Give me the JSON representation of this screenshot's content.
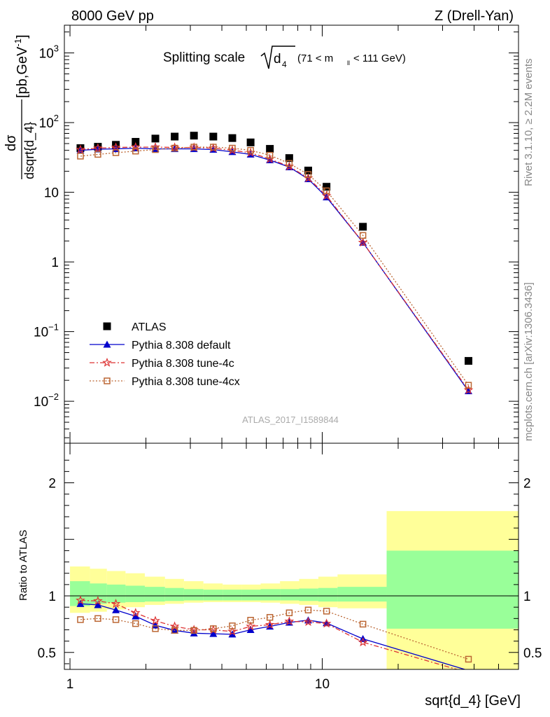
{
  "header": {
    "energy": "8000 GeV pp",
    "process": "Z (Drell-Yan)",
    "side_top": "Rivet 3.1.10, ≥ 2.2M events",
    "side_bottom": "mcplots.cern.ch [arXiv:1306.3436]"
  },
  "chart_data": [
    {
      "type": "scatter",
      "title": "Splitting scale",
      "title_symbol": "d",
      "title_sub": "4",
      "title_range_pre": "(71 < m",
      "title_range_sub": "ll",
      "title_range_post": " < 111 GeV)",
      "analysis": "ATLAS_2017_I1589844",
      "xscale": "log",
      "yscale": "log",
      "xlim": [
        0.95,
        60
      ],
      "ylim": [
        0.0025,
        2500
      ],
      "ylabel_top": "dσ",
      "ylabel_bottom": "dsqrt{d_4}",
      "ylabel_unit": "[pb,GeV",
      "ylabel_unit_sup": "-1",
      "ylabel_unit_end": "]",
      "y_ticks": [
        {
          "value": 1000,
          "base": "10",
          "exp": "3"
        },
        {
          "value": 100,
          "base": "10",
          "exp": "2"
        },
        {
          "value": 10,
          "base": "10",
          "exp": ""
        },
        {
          "value": 1,
          "base": "1",
          "exp": ""
        },
        {
          "value": 0.1,
          "base": "10",
          "exp": "−1"
        },
        {
          "value": 0.01,
          "base": "10",
          "exp": "−2"
        }
      ],
      "x": [
        1.1,
        1.29,
        1.52,
        1.82,
        2.18,
        2.6,
        3.1,
        3.7,
        4.4,
        5.2,
        6.2,
        7.4,
        8.8,
        10.4,
        14.5,
        38
      ],
      "series": [
        {
          "name": "ATLAS",
          "color": "#000000",
          "marker": "square",
          "values": [
            43,
            45,
            48,
            53,
            59,
            63,
            65,
            63,
            60,
            52,
            42,
            31,
            20.5,
            12,
            3.2,
            0.038
          ]
        },
        {
          "name": "Pythia 8.308 default",
          "color": "#0000cc",
          "marker": "triangle",
          "line": "solid",
          "values": [
            40,
            41.5,
            42,
            43,
            42,
            42,
            42,
            41,
            38,
            35,
            29,
            23,
            15.5,
            8.5,
            1.9,
            0.014
          ]
        },
        {
          "name": "Pythia 8.308 tune-4c",
          "color": "#dd3333",
          "marker": "star",
          "line": "dashdot",
          "values": [
            41,
            43,
            44,
            44.5,
            44.5,
            44,
            44,
            43,
            40,
            37,
            30,
            23.5,
            16,
            8.9,
            1.9,
            0.0145
          ]
        },
        {
          "name": "Pythia 8.308 tune-4cx",
          "color": "#bb6633",
          "marker": "open-square",
          "line": "dotted",
          "values": [
            33,
            35,
            37,
            39,
            41,
            43,
            44.5,
            44.5,
            43,
            40,
            34,
            26,
            18,
            10.5,
            2.4,
            0.017
          ]
        }
      ]
    },
    {
      "type": "scatter",
      "ylabel": "Ratio to ATLAS",
      "xlabel": "sqrt{d_4} [GeV]",
      "xscale": "log",
      "xlim": [
        0.95,
        60
      ],
      "ylim": [
        0.35,
        2.35
      ],
      "y_ticks": [
        {
          "value": 0.5,
          "label": "0.5"
        },
        {
          "value": 1,
          "label": "1"
        },
        {
          "value": 2,
          "label": "2"
        }
      ],
      "x_ticks": [
        {
          "value": 1,
          "label": "1"
        },
        {
          "value": 10,
          "label": "10"
        }
      ],
      "bin_edges": [
        1,
        1.2,
        1.4,
        1.66,
        1.98,
        2.38,
        2.83,
        3.38,
        4.03,
        4.8,
        5.7,
        6.8,
        8.1,
        9.65,
        11.5,
        18,
        60
      ],
      "band_inner": [
        [
          0.91,
          1.13
        ],
        [
          0.93,
          1.11
        ],
        [
          0.94,
          1.1
        ],
        [
          0.945,
          1.09
        ],
        [
          0.95,
          1.08
        ],
        [
          0.955,
          1.07
        ],
        [
          0.96,
          1.06
        ],
        [
          0.96,
          1.055
        ],
        [
          0.96,
          1.055
        ],
        [
          0.96,
          1.055
        ],
        [
          0.96,
          1.06
        ],
        [
          0.96,
          1.06
        ],
        [
          0.955,
          1.065
        ],
        [
          0.95,
          1.07
        ],
        [
          0.95,
          1.08
        ],
        [
          0.71,
          1.4
        ]
      ],
      "band_outer": [
        [
          0.85,
          1.26
        ],
        [
          0.86,
          1.24
        ],
        [
          0.88,
          1.22
        ],
        [
          0.9,
          1.2
        ],
        [
          0.92,
          1.17
        ],
        [
          0.93,
          1.15
        ],
        [
          0.94,
          1.13
        ],
        [
          0.945,
          1.11
        ],
        [
          0.945,
          1.1
        ],
        [
          0.945,
          1.1
        ],
        [
          0.94,
          1.11
        ],
        [
          0.93,
          1.13
        ],
        [
          0.92,
          1.15
        ],
        [
          0.9,
          1.17
        ],
        [
          0.89,
          1.19
        ],
        [
          0.35,
          1.75
        ]
      ],
      "series": [
        {
          "name": "Pythia 8.308 default",
          "color": "#0000cc",
          "marker": "triangle",
          "line": "solid",
          "values": [
            0.93,
            0.92,
            0.875,
            0.82,
            0.74,
            0.695,
            0.67,
            0.665,
            0.66,
            0.7,
            0.73,
            0.765,
            0.785,
            0.76,
            0.62,
            0.34
          ]
        },
        {
          "name": "Pythia 8.308 tune-4c",
          "color": "#dd3333",
          "marker": "star",
          "line": "dashdot",
          "values": [
            0.96,
            0.955,
            0.93,
            0.85,
            0.78,
            0.73,
            0.7,
            0.7,
            0.685,
            0.73,
            0.745,
            0.775,
            0.77,
            0.755,
            0.59,
            0.32
          ]
        },
        {
          "name": "Pythia 8.308 tune-4cx",
          "color": "#bb6633",
          "marker": "open-square",
          "line": "dotted",
          "values": [
            0.79,
            0.8,
            0.79,
            0.755,
            0.71,
            0.695,
            0.695,
            0.71,
            0.735,
            0.785,
            0.81,
            0.85,
            0.875,
            0.865,
            0.75,
            0.44
          ]
        }
      ]
    }
  ]
}
